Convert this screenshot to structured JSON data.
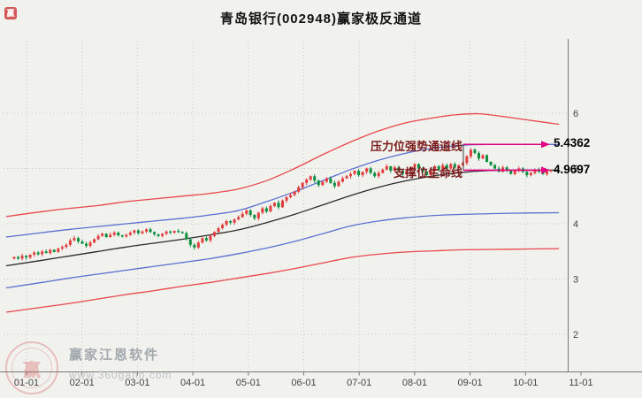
{
  "chart_data": {
    "type": "candlestick",
    "title": "青岛银行(002948)赢家极反通道",
    "stock_name": "青岛银行",
    "stock_code": "002948",
    "x_axis": {
      "labels": [
        "01-01",
        "02-01",
        "03-01",
        "04-01",
        "05-01",
        "06-01",
        "07-01",
        "08-01",
        "09-01",
        "10-01",
        "11-01"
      ]
    },
    "y_axis": {
      "ticks": [
        {
          "label": "6",
          "value": 6
        },
        {
          "label": "5",
          "value": 5
        },
        {
          "label": "4",
          "value": 4
        },
        {
          "label": "3",
          "value": 3
        },
        {
          "label": "2",
          "value": 2
        }
      ]
    },
    "candles": {
      "closes": [
        3.4,
        3.37,
        3.42,
        3.39,
        3.44,
        3.48,
        3.45,
        3.5,
        3.47,
        3.53,
        3.49,
        3.55,
        3.58,
        3.62,
        3.7,
        3.74,
        3.68,
        3.64,
        3.6,
        3.66,
        3.72,
        3.78,
        3.82,
        3.76,
        3.8,
        3.84,
        3.79,
        3.77,
        3.8,
        3.84,
        3.88,
        3.83,
        3.86,
        3.9,
        3.85,
        3.81,
        3.78,
        3.82,
        3.86,
        3.84,
        3.87,
        3.85,
        3.83,
        3.72,
        3.62,
        3.57,
        3.66,
        3.74,
        3.7,
        3.78,
        3.85,
        3.92,
        3.98,
        4.05,
        4.02,
        4.08,
        4.12,
        4.18,
        4.24,
        4.16,
        4.1,
        4.2,
        4.28,
        4.22,
        4.32,
        4.38,
        4.3,
        4.42,
        4.48,
        4.52,
        4.58,
        4.66,
        4.74,
        4.8,
        4.86,
        4.78,
        4.7,
        4.76,
        4.82,
        4.74,
        4.68,
        4.76,
        4.82,
        4.86,
        4.9,
        4.96,
        4.88,
        4.94,
        5.0,
        4.92,
        4.86,
        4.92,
        4.98,
        5.04,
        4.96,
        5.02,
        4.96,
        4.9,
        4.96,
        5.02,
        5.08,
        5.0,
        4.94,
        4.88,
        4.96,
        5.04,
        4.98,
        5.06,
        5.0,
        5.08,
        5.02,
        5.06,
        5.1,
        5.22,
        5.34,
        5.28,
        5.18,
        5.24,
        5.12,
        5.06,
        5.0,
        4.94,
        5.02,
        4.96,
        4.9,
        4.96,
        5.0,
        4.94,
        4.88,
        4.92,
        4.98,
        4.94,
        4.9,
        4.95,
        4.97
      ],
      "typical_wick": 0.035
    },
    "channel_lines": [
      {
        "name": "outer-resistance-red",
        "color": "#e8474b",
        "points": [
          [
            -2,
            4.13
          ],
          [
            7,
            4.22
          ],
          [
            14,
            4.28
          ],
          [
            21,
            4.33
          ],
          [
            28,
            4.4
          ],
          [
            35,
            4.45
          ],
          [
            42,
            4.5
          ],
          [
            49,
            4.55
          ],
          [
            56,
            4.63
          ],
          [
            63,
            4.78
          ],
          [
            70,
            5.0
          ],
          [
            77,
            5.25
          ],
          [
            84,
            5.48
          ],
          [
            91,
            5.68
          ],
          [
            98,
            5.83
          ],
          [
            105,
            5.92
          ],
          [
            110,
            5.97
          ],
          [
            116,
            5.99
          ],
          [
            122,
            5.94
          ],
          [
            128,
            5.88
          ],
          [
            136,
            5.8
          ]
        ]
      },
      {
        "name": "strong-channel-blue",
        "color": "#5a6fd0",
        "points": [
          [
            -2,
            3.76
          ],
          [
            7,
            3.84
          ],
          [
            14,
            3.9
          ],
          [
            21,
            3.95
          ],
          [
            28,
            4.0
          ],
          [
            35,
            4.05
          ],
          [
            42,
            4.1
          ],
          [
            49,
            4.16
          ],
          [
            56,
            4.24
          ],
          [
            63,
            4.4
          ],
          [
            70,
            4.58
          ],
          [
            77,
            4.78
          ],
          [
            84,
            4.98
          ],
          [
            91,
            5.15
          ],
          [
            98,
            5.28
          ],
          [
            105,
            5.37
          ],
          [
            112,
            5.42
          ],
          [
            118,
            5.436
          ],
          [
            136,
            5.436
          ]
        ]
      },
      {
        "name": "lifeline-black",
        "color": "#2b2b2b",
        "points": [
          [
            -2,
            3.24
          ],
          [
            7,
            3.34
          ],
          [
            14,
            3.42
          ],
          [
            21,
            3.5
          ],
          [
            28,
            3.58
          ],
          [
            35,
            3.65
          ],
          [
            42,
            3.72
          ],
          [
            49,
            3.8
          ],
          [
            56,
            3.89
          ],
          [
            63,
            4.02
          ],
          [
            70,
            4.17
          ],
          [
            77,
            4.34
          ],
          [
            84,
            4.51
          ],
          [
            91,
            4.66
          ],
          [
            98,
            4.78
          ],
          [
            105,
            4.87
          ],
          [
            112,
            4.93
          ],
          [
            118,
            4.96
          ],
          [
            124,
            4.97
          ],
          [
            136,
            4.97
          ]
        ]
      },
      {
        "name": "support-channel-blue",
        "color": "#5a6fd0",
        "points": [
          [
            -2,
            2.84
          ],
          [
            7,
            2.94
          ],
          [
            14,
            3.02
          ],
          [
            21,
            3.09
          ],
          [
            28,
            3.16
          ],
          [
            35,
            3.23
          ],
          [
            42,
            3.3
          ],
          [
            49,
            3.37
          ],
          [
            56,
            3.46
          ],
          [
            63,
            3.56
          ],
          [
            70,
            3.68
          ],
          [
            77,
            3.82
          ],
          [
            84,
            3.96
          ],
          [
            91,
            4.05
          ],
          [
            98,
            4.11
          ],
          [
            105,
            4.15
          ],
          [
            112,
            4.17
          ],
          [
            124,
            4.19
          ],
          [
            136,
            4.2
          ]
        ]
      },
      {
        "name": "outer-support-red",
        "color": "#e8474b",
        "points": [
          [
            -2,
            2.4
          ],
          [
            7,
            2.49
          ],
          [
            14,
            2.56
          ],
          [
            21,
            2.64
          ],
          [
            28,
            2.72
          ],
          [
            35,
            2.79
          ],
          [
            42,
            2.87
          ],
          [
            49,
            2.94
          ],
          [
            56,
            3.02
          ],
          [
            63,
            3.1
          ],
          [
            70,
            3.19
          ],
          [
            77,
            3.29
          ],
          [
            84,
            3.39
          ],
          [
            91,
            3.45
          ],
          [
            98,
            3.49
          ],
          [
            105,
            3.51
          ],
          [
            112,
            3.53
          ],
          [
            124,
            3.54
          ],
          [
            136,
            3.55
          ]
        ]
      }
    ],
    "annotations": [
      {
        "label": "压力位强势通道线",
        "value": "5.4362",
        "line_color": "#e0007f"
      },
      {
        "label": "支撑位生命线",
        "value": "4.9697",
        "line_color": "#e0007f"
      }
    ],
    "colors": {
      "up": "#e13d3d",
      "down": "#0a8f3f",
      "grid": "#c8c8c8",
      "axis": "#777777"
    },
    "ylim": [
      2,
      6
    ]
  },
  "watermark": {
    "brand": "赢家江恩软件",
    "url": "www.360gann.com",
    "logo_char": "赢"
  },
  "corner_logo_char": "赢"
}
